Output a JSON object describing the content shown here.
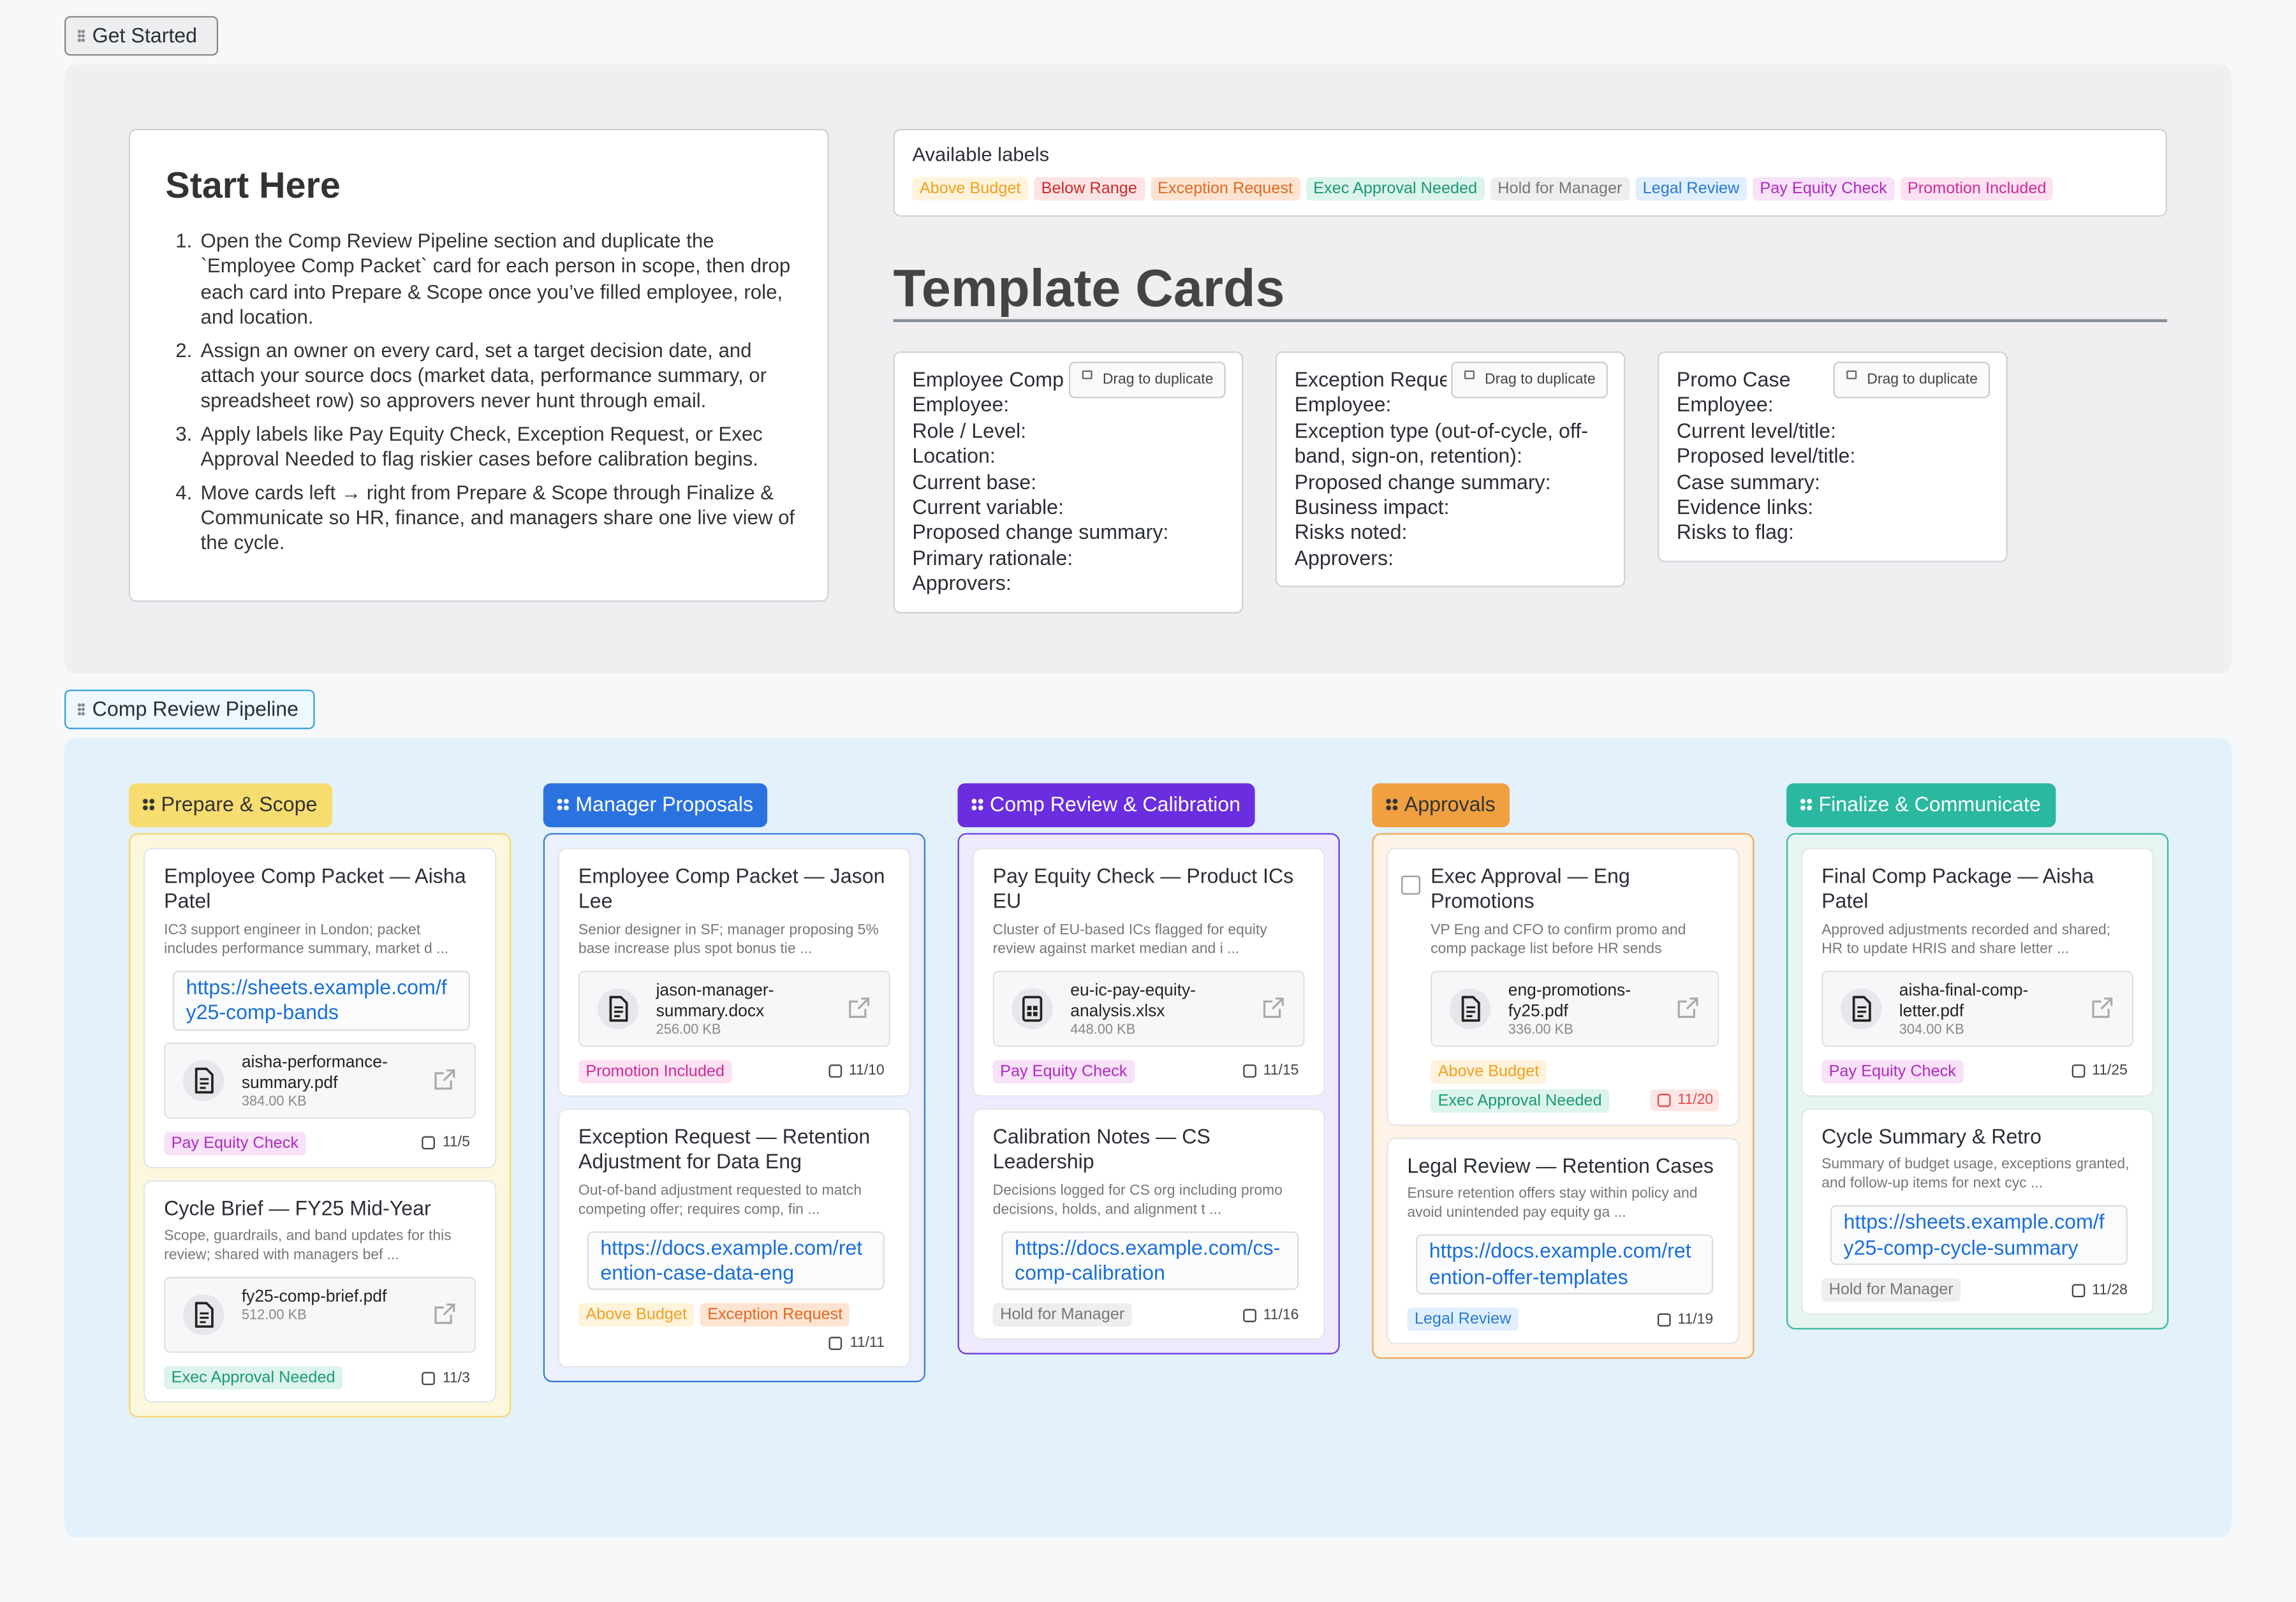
{
  "get_started": {
    "section_label": "Get Started",
    "start_here": {
      "title": "Start Here",
      "steps": [
        "Open the Comp Review Pipeline section and duplicate the `Employee Comp Packet` card for each person in scope, then drop each card into Prepare & Scope once you’ve filled employee, role, and location.",
        "Assign an owner on every card, set a target decision date, and attach your source docs (market data, performance summary, or spreadsheet row) so approvers never hunt through email.",
        "Apply labels like Pay Equity Check, Exception Request, or Exec Approval Needed to flag riskier cases before calibration begins.",
        "Move cards left → right from Prepare & Scope through Finalize & Communicate so HR, finance, and managers share one live view of the cycle."
      ]
    },
    "available_labels": {
      "title": "Available labels",
      "labels": [
        {
          "name": "Above Budget",
          "color": "#f0a020",
          "bg": "#fff3dc"
        },
        {
          "name": "Below Range",
          "color": "#d02a2a",
          "bg": "#fde4e4"
        },
        {
          "name": "Exception Request",
          "color": "#e06a20",
          "bg": "#fde3d2"
        },
        {
          "name": "Exec Approval Needed",
          "color": "#1a9a70",
          "bg": "#dcf4ea"
        },
        {
          "name": "Hold for Manager",
          "color": "#777777",
          "bg": "#eeeeee"
        },
        {
          "name": "Legal Review",
          "color": "#2a7ad0",
          "bg": "#e0efff"
        },
        {
          "name": "Pay Equity Check",
          "color": "#b02ac0",
          "bg": "#f7e2fa"
        },
        {
          "name": "Promotion Included",
          "color": "#d02a9a",
          "bg": "#fde2f2"
        }
      ]
    },
    "template_heading": "Template Cards",
    "template_cards": [
      {
        "title": "Employee Comp",
        "action": "Drag to duplicate",
        "fields": [
          "Employee:",
          "Role / Level:",
          "Location:",
          "Current base:",
          "Current variable:",
          "Proposed change summary:",
          "Primary rationale:",
          "Approvers:"
        ]
      },
      {
        "title": "Exception Reque",
        "action": "Drag to duplicate",
        "fields": [
          "Employee:",
          "Exception type (out-of-cycle, off-band, sign-on, retention):",
          "Proposed change summary:",
          "Business impact:",
          "Risks noted:",
          "Approvers:"
        ]
      },
      {
        "title": "Promo Case",
        "action": "Drag to duplicate",
        "fields": [
          "Employee:",
          "Current level/title:",
          "Proposed level/title:",
          "Case summary:",
          "Evidence links:",
          "Risks to flag:"
        ]
      }
    ]
  },
  "pipeline": {
    "section_label": "Comp Review Pipeline",
    "columns": [
      {
        "name": "Prepare & Scope",
        "color": "#f7dd70",
        "text_color": "#333333",
        "border": "#f3d86a",
        "bg": "#fdf8dd",
        "cards": [
          {
            "title": "Employee Comp Packet — Aisha Patel",
            "description": "IC3 support engineer in London; packet includes performance summary, market d ...",
            "link": "https://sheets.example.com/fy25-comp-bands",
            "attachment": {
              "name": "aisha-performance-summary.pdf",
              "size": "384.00 KB"
            },
            "labels": [
              "Pay Equity Check"
            ],
            "date": "11/5"
          },
          {
            "title": "Cycle Brief — FY25 Mid-Year",
            "description": "Scope, guardrails, and band updates for this review; shared with managers bef ...",
            "attachment": {
              "name": "fy25-comp-brief.pdf",
              "size": "512.00 KB"
            },
            "labels": [
              "Exec Approval Needed"
            ],
            "date": "11/3"
          }
        ]
      },
      {
        "name": "Manager Proposals",
        "color": "#2a72e0",
        "text_color": "#ffffff",
        "border": "#3a7ae0",
        "bg": "#eaf1fd",
        "cards": [
          {
            "title": "Employee Comp Packet — Jason Lee",
            "description": "Senior designer in SF; manager proposing 5% base increase plus spot bonus tie ...",
            "attachment": {
              "name": "jason-manager-summary.docx",
              "size": "256.00 KB"
            },
            "labels": [
              "Promotion Included"
            ],
            "date": "11/10"
          },
          {
            "title": "Exception Request — Retention Adjustment for Data Eng",
            "description": "Out-of-band adjustment requested to match competing offer; requires comp, fin ...",
            "link": "https://docs.example.com/retention-case-data-eng",
            "labels": [
              "Above Budget",
              "Exception Request"
            ],
            "date": "11/11"
          }
        ]
      },
      {
        "name": "Comp Review & Calibration",
        "color": "#6a2ee0",
        "text_color": "#ffffff",
        "border": "#6a3ee0",
        "bg": "#efeafd",
        "cards": [
          {
            "title": "Pay Equity Check — Product ICs EU",
            "description": "Cluster of EU-based ICs flagged for equity review against market median and i ...",
            "attachment": {
              "name": "eu-ic-pay-equity-analysis.xlsx",
              "size": "448.00 KB"
            },
            "labels": [
              "Pay Equity Check"
            ],
            "date": "11/15"
          },
          {
            "title": "Calibration Notes — CS Leadership",
            "description": "Decisions logged for CS org including promo decisions, holds, and alignment t ...",
            "link": "https://docs.example.com/cs-comp-calibration",
            "labels": [
              "Hold for Manager"
            ],
            "date": "11/16"
          }
        ]
      },
      {
        "name": "Approvals",
        "color": "#f0a040",
        "text_color": "#333333",
        "border": "#f0a858",
        "bg": "#fdf3e6",
        "cards": [
          {
            "title": "Exec Approval — Eng Promotions",
            "checkbox": true,
            "description": "VP Eng and CFO to confirm promo and comp package list before HR sends",
            "attachment": {
              "name": "eng-promotions-fy25.pdf",
              "size": "336.00 KB"
            },
            "labels": [
              "Above Budget",
              "Exec Approval Needed"
            ],
            "date": "11/20",
            "overdue": true
          },
          {
            "title": "Legal Review — Retention Cases",
            "description": "Ensure retention offers stay within policy and avoid unintended pay equity ga ...",
            "link": "https://docs.example.com/retention-offer-templates",
            "labels": [
              "Legal Review"
            ],
            "date": "11/19"
          }
        ]
      },
      {
        "name": "Finalize & Communicate",
        "color": "#2ab8a0",
        "text_color": "#ffffff",
        "border": "#3ab8a0",
        "bg": "#e6f5f2",
        "cards": [
          {
            "title": "Final Comp Package — Aisha Patel",
            "description": "Approved adjustments recorded and shared; HR to update HRIS and share letter ...",
            "attachment": {
              "name": "aisha-final-comp-letter.pdf",
              "size": "304.00 KB"
            },
            "labels": [
              "Pay Equity Check"
            ],
            "date": "11/25"
          },
          {
            "title": "Cycle Summary & Retro",
            "description": "Summary of budget usage, exceptions granted, and follow-up items for next cyc ...",
            "link": "https://sheets.example.com/fy25-comp-cycle-summary",
            "labels": [
              "Hold for Manager"
            ],
            "date": "11/28"
          }
        ]
      }
    ]
  }
}
